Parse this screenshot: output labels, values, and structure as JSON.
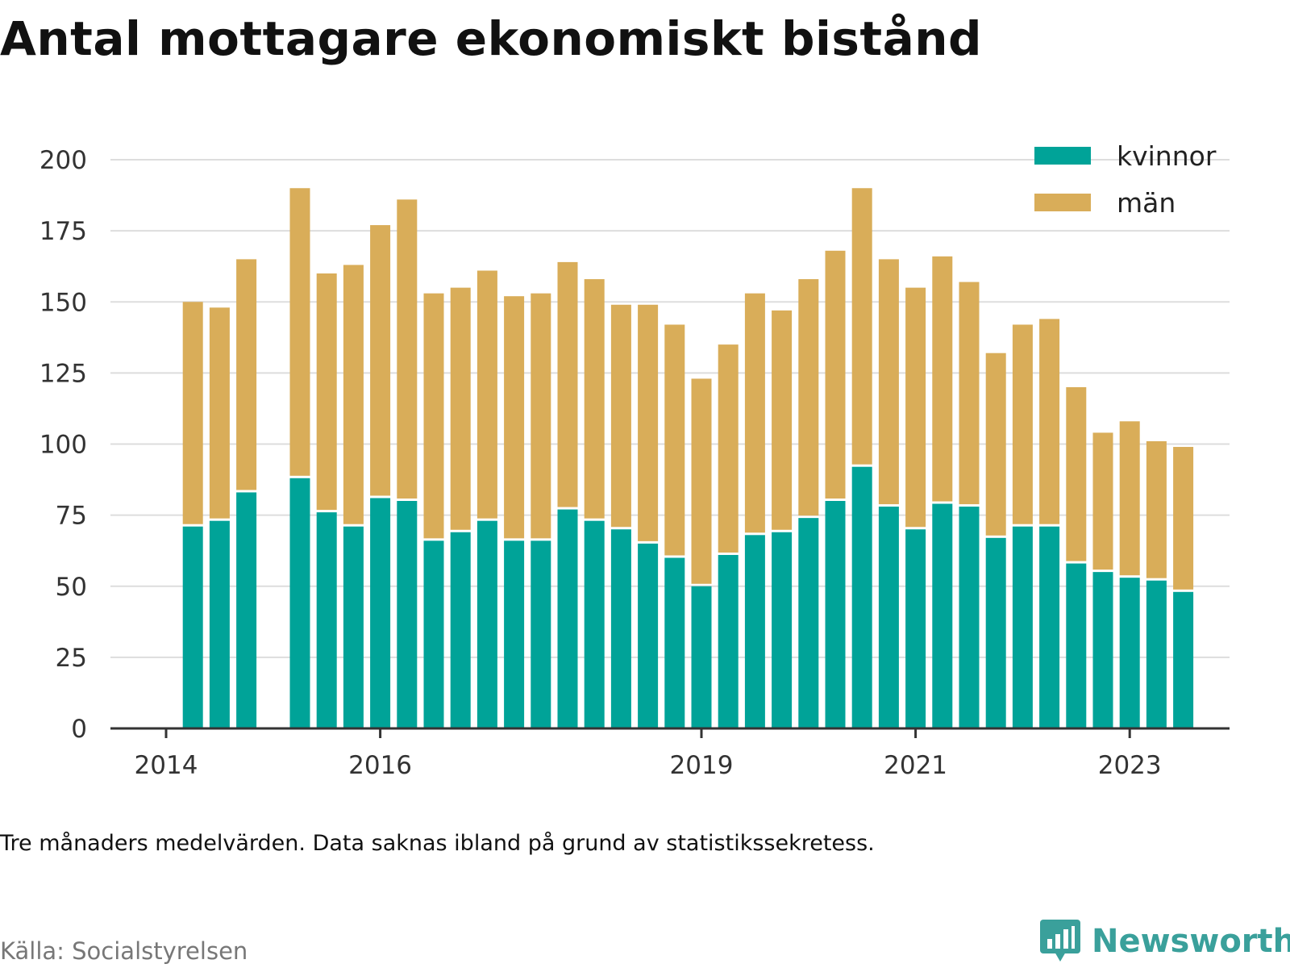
{
  "title": "Antal mottagare ekonomiskt bistånd",
  "note": "Tre månaders medelvärden. Data saknas ibland på grund av statistikssekretess.",
  "source": "Källa: Socialstyrelsen",
  "brand": "Newsworthy",
  "colors": {
    "kvinnor": "#00a398",
    "man": "#d9ad59",
    "grid": "#dddddd",
    "axis": "#333333",
    "brand": "#3aa09b"
  },
  "chart_data": {
    "type": "bar",
    "stacked": true,
    "ylim": [
      0,
      210
    ],
    "yticks": [
      0,
      25,
      50,
      75,
      100,
      125,
      150,
      175,
      200
    ],
    "x_tick_labels": [
      {
        "slot": 0,
        "label": "2014"
      },
      {
        "slot": 8,
        "label": "2016"
      },
      {
        "slot": 20,
        "label": "2019"
      },
      {
        "slot": 28,
        "label": "2021"
      },
      {
        "slot": 36,
        "label": "2023"
      }
    ],
    "legend_position": "top-right",
    "slot_count": 42,
    "series": [
      {
        "name": "kvinnor",
        "values": [
          null,
          71,
          73,
          83,
          null,
          88,
          76,
          71,
          81,
          80,
          66,
          69,
          73,
          66,
          66,
          77,
          73,
          70,
          65,
          60,
          50,
          61,
          68,
          69,
          74,
          80,
          92,
          78,
          70,
          79,
          78,
          67,
          71,
          71,
          58,
          55,
          53,
          52,
          48
        ]
      },
      {
        "name": "män",
        "values": [
          null,
          79,
          75,
          82,
          null,
          102,
          84,
          92,
          96,
          106,
          87,
          86,
          88,
          86,
          87,
          87,
          85,
          79,
          84,
          82,
          73,
          74,
          85,
          78,
          84,
          88,
          98,
          87,
          85,
          87,
          79,
          65,
          71,
          73,
          62,
          49,
          55,
          49,
          51
        ]
      }
    ]
  }
}
